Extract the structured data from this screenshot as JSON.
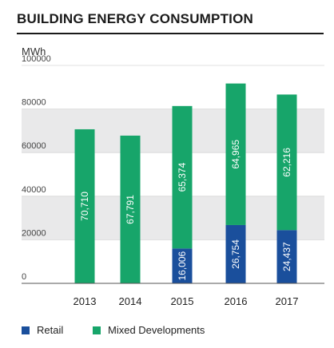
{
  "title": "BUILDING ENERGY CONSUMPTION",
  "chart_data": {
    "type": "bar",
    "stacked": true,
    "title": "BUILDING ENERGY CONSUMPTION",
    "ylabel": "MWh",
    "xlabel": "",
    "ylim": [
      0,
      100000
    ],
    "yticks": [
      0,
      20000,
      40000,
      60000,
      80000,
      100000
    ],
    "grid": "alternating horizontal bands",
    "legend_position": "bottom",
    "categories": [
      "2013",
      "2014",
      "2015",
      "2016",
      "2017"
    ],
    "series": [
      {
        "name": "Retail",
        "color": "#1a4f9c",
        "values": [
          0,
          0,
          16006,
          26754,
          24437
        ],
        "labels": [
          "",
          "",
          "16,006",
          "26,754",
          "24,437"
        ]
      },
      {
        "name": "Mixed Developments",
        "color": "#17a56a",
        "values": [
          70710,
          67791,
          65374,
          64965,
          62216
        ],
        "labels": [
          "70,710",
          "67,791",
          "65,374",
          "64,965",
          "62,216"
        ]
      }
    ]
  }
}
